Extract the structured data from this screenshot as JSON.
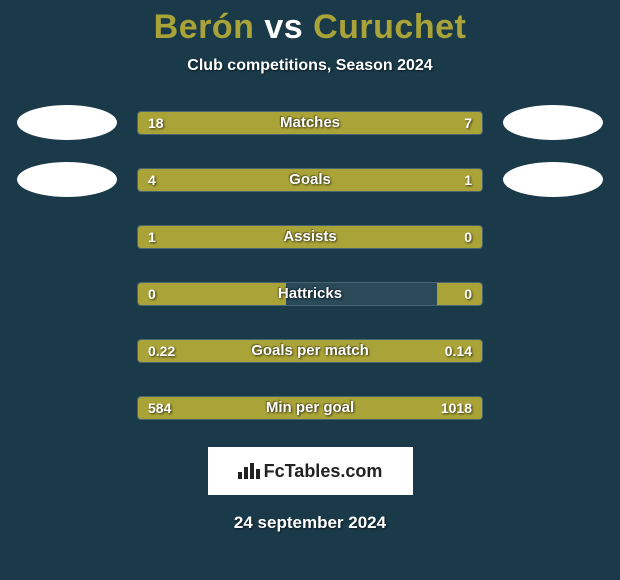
{
  "title_player1": "Berón",
  "title_vs": "vs",
  "title_player2": "Curuchet",
  "subtitle": "Club competitions, Season 2024",
  "brand": "FcTables.com",
  "date": "24 september 2024",
  "colors": {
    "background": "#1a3a4a",
    "bar_fill": "#aaa438",
    "bar_track": "#2a4a5a",
    "text": "#ffffff",
    "brand_bg": "#ffffff",
    "brand_text": "#222222"
  },
  "stats": [
    {
      "label": "Matches",
      "left_val": "18",
      "right_val": "7",
      "left_pct": 68,
      "right_pct": 32,
      "show_avatars": true
    },
    {
      "label": "Goals",
      "left_val": "4",
      "right_val": "1",
      "left_pct": 76,
      "right_pct": 24,
      "show_avatars": true
    },
    {
      "label": "Assists",
      "left_val": "1",
      "right_val": "0",
      "left_pct": 87,
      "right_pct": 13,
      "show_avatars": false
    },
    {
      "label": "Hattricks",
      "left_val": "0",
      "right_val": "0",
      "left_pct": 43,
      "right_pct": 13,
      "show_avatars": false
    },
    {
      "label": "Goals per match",
      "left_val": "0.22",
      "right_val": "0.14",
      "left_pct": 60,
      "right_pct": 40,
      "show_avatars": false
    },
    {
      "label": "Min per goal",
      "left_val": "584",
      "right_val": "1018",
      "left_pct": 38,
      "right_pct": 62,
      "show_avatars": false
    }
  ]
}
